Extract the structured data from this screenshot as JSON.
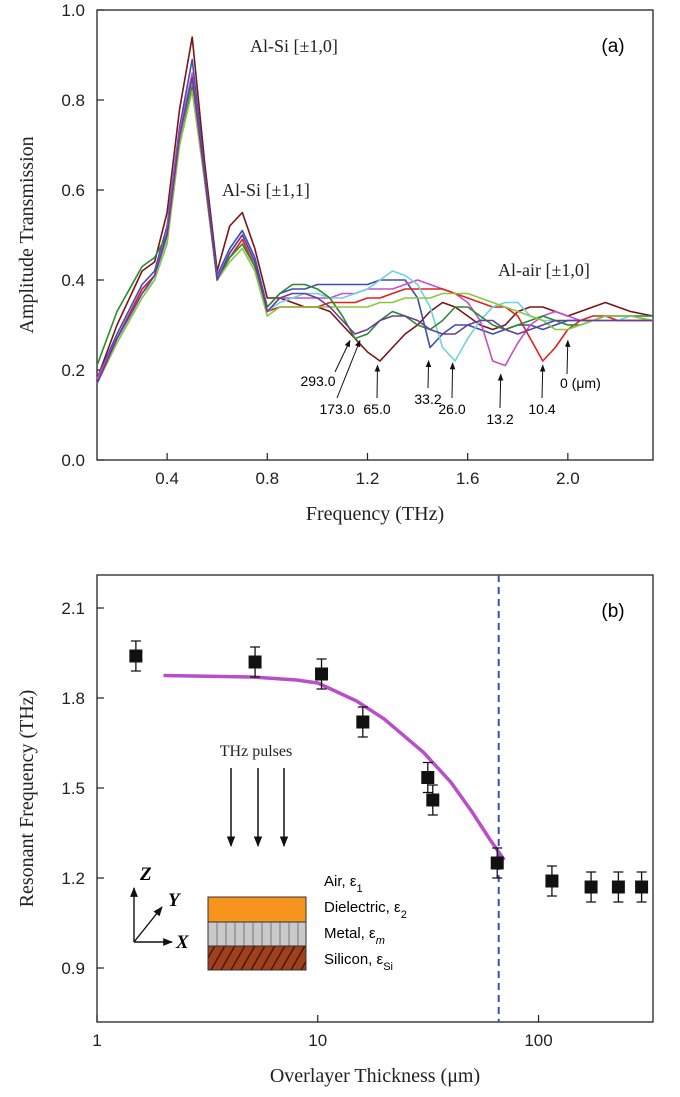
{
  "chart_data": [
    {
      "type": "line",
      "xlabel": "Frequency (THz)",
      "ylabel": "Amplitude Transmission",
      "panel_label": "(a)",
      "annotations": [
        "Al-Si [±1,0]",
        "Al-Si [±1,1]",
        "Al-air [±1,0]"
      ],
      "arrows": [
        {
          "text": "293.0",
          "x": 1.13,
          "y": 0.27
        },
        {
          "text": "173.0",
          "x": 1.17,
          "y": 0.27
        },
        {
          "text": "65.0",
          "x": 1.24,
          "y": 0.215
        },
        {
          "text": "33.2",
          "x": 1.444,
          "y": 0.225
        },
        {
          "text": "26.0",
          "x": 1.54,
          "y": 0.22
        },
        {
          "text": "13.2",
          "x": 1.732,
          "y": 0.195
        },
        {
          "text": "10.4",
          "x": 1.9,
          "y": 0.215
        },
        {
          "text": "0 (μm)",
          "x": 2.0,
          "y": 0.27
        }
      ],
      "xlim": [
        0.12,
        2.34
      ],
      "ylim": [
        0,
        1
      ],
      "xticks": [
        0.4,
        0.8,
        1.2,
        1.6,
        {
          "value": 2,
          "label": "2.0"
        }
      ],
      "yticks": [
        {
          "value": 0,
          "label": "0.0"
        },
        0.2,
        0.4,
        0.6,
        0.8,
        {
          "value": 1,
          "label": "1.0"
        }
      ],
      "x": [
        0.12,
        0.2,
        0.3,
        0.35,
        0.4,
        0.45,
        0.5,
        0.55,
        0.6,
        0.65,
        0.7,
        0.75,
        0.8,
        0.85,
        0.9,
        0.95,
        1.0,
        1.05,
        1.1,
        1.15,
        1.2,
        1.25,
        1.3,
        1.35,
        1.4,
        1.45,
        1.5,
        1.55,
        1.6,
        1.65,
        1.7,
        1.75,
        1.8,
        1.85,
        1.9,
        1.95,
        2.0,
        2.05,
        2.1,
        2.15,
        2.2,
        2.25,
        2.34
      ],
      "series": [
        {
          "color": "#7b1416",
          "values": [
            0.18,
            0.3,
            0.42,
            0.44,
            0.55,
            0.78,
            0.94,
            0.66,
            0.42,
            0.52,
            0.55,
            0.47,
            0.36,
            0.36,
            0.35,
            0.34,
            0.34,
            0.33,
            0.3,
            0.27,
            0.24,
            0.22,
            0.25,
            0.28,
            0.3,
            0.33,
            0.35,
            0.34,
            0.32,
            0.3,
            0.29,
            0.3,
            0.33,
            0.34,
            0.34,
            0.33,
            0.32,
            0.33,
            0.34,
            0.35,
            0.34,
            0.33,
            0.32
          ]
        },
        {
          "color": "#3a4fb5",
          "values": [
            0.18,
            0.28,
            0.39,
            0.42,
            0.52,
            0.74,
            0.89,
            0.64,
            0.41,
            0.47,
            0.51,
            0.45,
            0.34,
            0.37,
            0.38,
            0.38,
            0.39,
            0.39,
            0.39,
            0.39,
            0.39,
            0.4,
            0.4,
            0.4,
            0.36,
            0.25,
            0.28,
            0.3,
            0.3,
            0.29,
            0.28,
            0.29,
            0.3,
            0.3,
            0.29,
            0.3,
            0.31,
            0.31,
            0.31,
            0.31,
            0.31,
            0.31,
            0.31
          ]
        },
        {
          "color": "#c84fc8",
          "values": [
            0.18,
            0.27,
            0.38,
            0.41,
            0.51,
            0.73,
            0.86,
            0.63,
            0.4,
            0.46,
            0.5,
            0.44,
            0.33,
            0.36,
            0.36,
            0.36,
            0.36,
            0.36,
            0.37,
            0.37,
            0.38,
            0.38,
            0.38,
            0.39,
            0.4,
            0.39,
            0.38,
            0.37,
            0.35,
            0.31,
            0.22,
            0.21,
            0.26,
            0.3,
            0.32,
            0.33,
            0.32,
            0.31,
            0.31,
            0.32,
            0.32,
            0.32,
            0.31
          ]
        },
        {
          "color": "#e0221e",
          "values": [
            0.17,
            0.27,
            0.38,
            0.41,
            0.5,
            0.72,
            0.85,
            0.63,
            0.4,
            0.45,
            0.49,
            0.43,
            0.33,
            0.34,
            0.34,
            0.34,
            0.34,
            0.35,
            0.35,
            0.35,
            0.36,
            0.36,
            0.37,
            0.38,
            0.38,
            0.38,
            0.38,
            0.37,
            0.36,
            0.35,
            0.34,
            0.34,
            0.32,
            0.27,
            0.22,
            0.25,
            0.29,
            0.31,
            0.32,
            0.32,
            0.31,
            0.31,
            0.31
          ]
        },
        {
          "color": "#6cd3e0",
          "values": [
            0.17,
            0.26,
            0.37,
            0.4,
            0.49,
            0.71,
            0.84,
            0.62,
            0.4,
            0.45,
            0.48,
            0.43,
            0.33,
            0.35,
            0.36,
            0.37,
            0.37,
            0.36,
            0.36,
            0.37,
            0.38,
            0.4,
            0.42,
            0.41,
            0.39,
            0.34,
            0.25,
            0.22,
            0.27,
            0.31,
            0.34,
            0.35,
            0.35,
            0.32,
            0.31,
            0.31,
            0.3,
            0.3,
            0.31,
            0.31,
            0.31,
            0.32,
            0.31
          ]
        },
        {
          "color": "#2a8a2a",
          "values": [
            0.21,
            0.33,
            0.43,
            0.45,
            0.5,
            0.7,
            0.83,
            0.62,
            0.4,
            0.45,
            0.48,
            0.43,
            0.34,
            0.37,
            0.39,
            0.39,
            0.38,
            0.36,
            0.32,
            0.27,
            0.28,
            0.31,
            0.33,
            0.32,
            0.3,
            0.29,
            0.31,
            0.34,
            0.34,
            0.32,
            0.3,
            0.29,
            0.3,
            0.31,
            0.32,
            0.31,
            0.3,
            0.3,
            0.31,
            0.32,
            0.32,
            0.32,
            0.32
          ]
        },
        {
          "color": "#8cc63f",
          "values": [
            0.17,
            0.26,
            0.36,
            0.4,
            0.48,
            0.7,
            0.82,
            0.62,
            0.4,
            0.44,
            0.47,
            0.42,
            0.32,
            0.34,
            0.34,
            0.34,
            0.34,
            0.34,
            0.34,
            0.34,
            0.34,
            0.35,
            0.35,
            0.36,
            0.36,
            0.36,
            0.37,
            0.37,
            0.37,
            0.36,
            0.35,
            0.34,
            0.33,
            0.32,
            0.31,
            0.29,
            0.29,
            0.3,
            0.31,
            0.32,
            0.32,
            0.32,
            0.31
          ]
        },
        {
          "color": "#6a3d9a",
          "values": [
            0.17,
            0.27,
            0.37,
            0.41,
            0.5,
            0.72,
            0.85,
            0.63,
            0.4,
            0.46,
            0.5,
            0.44,
            0.33,
            0.36,
            0.37,
            0.37,
            0.36,
            0.34,
            0.31,
            0.28,
            0.29,
            0.31,
            0.32,
            0.32,
            0.31,
            0.29,
            0.28,
            0.28,
            0.3,
            0.31,
            0.31,
            0.29,
            0.28,
            0.29,
            0.3,
            0.31,
            0.31,
            0.31,
            0.31,
            0.31,
            0.31,
            0.31,
            0.31
          ]
        }
      ]
    },
    {
      "type": "scatter",
      "xlabel": "Overlayer Thickness (μm)",
      "ylabel": "Resonant Frequency (THz)",
      "panel_label": "(b)",
      "xscale": "log",
      "xlim": [
        1,
        330
      ],
      "ylim": [
        0.72,
        2.21
      ],
      "xticks": [
        1,
        10,
        100
      ],
      "yticks": [
        0.9,
        1.2,
        1.5,
        1.8,
        2.1
      ],
      "color": "#111111",
      "x": [
        1.5,
        5.2,
        10.4,
        16,
        31.5,
        33.2,
        65,
        115,
        173,
        230,
        293
      ],
      "values": [
        1.94,
        1.92,
        1.88,
        1.72,
        1.535,
        1.46,
        1.25,
        1.19,
        1.17,
        1.17,
        1.17
      ],
      "errors": [
        0.05,
        0.05,
        0.05,
        0.05,
        0.05,
        0.05,
        0.05,
        0.05,
        0.05,
        0.05,
        0.05
      ],
      "fit": {
        "color": "#b84fc8",
        "x": [
          2,
          5,
          8,
          10,
          15,
          20,
          30,
          40,
          50,
          60,
          70
        ],
        "values": [
          1.875,
          1.87,
          1.86,
          1.85,
          1.79,
          1.73,
          1.62,
          1.52,
          1.42,
          1.33,
          1.26
        ]
      },
      "vline": 66,
      "vline_color": "#3a4fb5",
      "inset": {
        "title": "THz pulses",
        "axes": [
          "Z",
          "Y",
          "X"
        ],
        "layers": [
          {
            "text": "Air, ε",
            "sub": "1"
          },
          {
            "text": "Dielectric, ε",
            "sub": "2"
          },
          {
            "text": "Metal, ε",
            "sub": "m"
          },
          {
            "text": "Silicon, ε",
            "sub": "Si"
          }
        ]
      }
    }
  ]
}
